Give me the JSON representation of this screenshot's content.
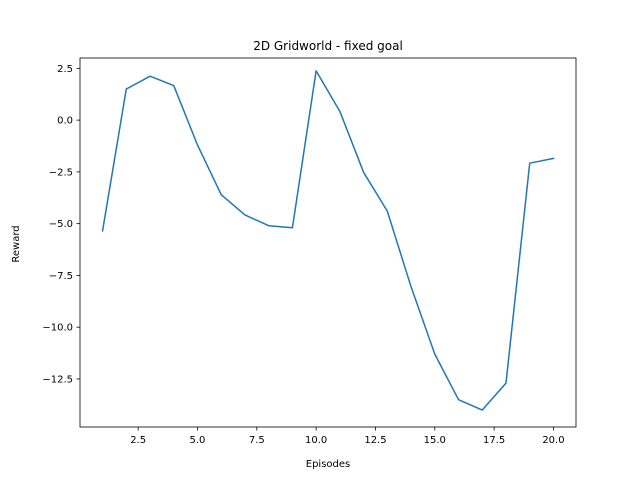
{
  "chart_data": {
    "type": "line",
    "title": "2D Gridworld - fixed goal",
    "xlabel": "Episodes",
    "ylabel": "Reward",
    "xlim": [
      0.05,
      20.95
    ],
    "ylim": [
      -14.82,
      3.0
    ],
    "xticks": [
      2.5,
      5.0,
      7.5,
      10.0,
      12.5,
      15.0,
      17.5,
      20.0
    ],
    "xtick_labels": [
      "2.5",
      "5.0",
      "7.5",
      "10.0",
      "12.5",
      "15.0",
      "17.5",
      "20.0"
    ],
    "yticks": [
      2.5,
      0.0,
      -2.5,
      -5.0,
      -7.5,
      -10.0,
      -12.5
    ],
    "ytick_labels": [
      "2.5",
      "0.0",
      "−2.5",
      "−5.0",
      "−7.5",
      "−10.0",
      "−12.5"
    ],
    "grid": false,
    "series": [
      {
        "color": "#1f77b4",
        "x": [
          1,
          2,
          3,
          4,
          5,
          6,
          7,
          8,
          9,
          10,
          11,
          12,
          13,
          14,
          15,
          16,
          17,
          18,
          19,
          20
        ],
        "values": [
          -5.35,
          1.5,
          2.12,
          1.67,
          -1.2,
          -3.6,
          -4.58,
          -5.1,
          -5.2,
          2.38,
          0.42,
          -2.52,
          -4.4,
          -8.05,
          -11.3,
          -13.5,
          -14.0,
          -12.7,
          -2.08,
          -1.85
        ]
      }
    ]
  }
}
